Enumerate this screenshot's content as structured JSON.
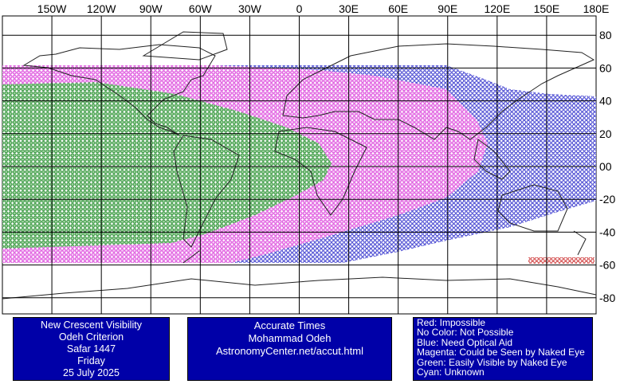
{
  "lon_labels": [
    "150W",
    "120W",
    "90W",
    "60W",
    "30W",
    "0",
    "30E",
    "60E",
    "90E",
    "120E",
    "150E",
    "180E"
  ],
  "lat_labels": [
    "80",
    "60",
    "40",
    "20",
    "00",
    "-20",
    "-40",
    "-60",
    "-80"
  ],
  "info_box": {
    "lines": [
      "New Crescent Visibility",
      "Odeh Criterion",
      "Safar 1447",
      "Friday",
      "25 July 2025"
    ]
  },
  "credit_box": {
    "lines": [
      "Accurate Times",
      "Mohammad Odeh",
      "AstronomyCenter.net/accut.html"
    ]
  },
  "legend": {
    "lines": [
      "Red: Impossible",
      "No Color: Not Possible",
      "Blue: Need Optical Aid",
      "Magenta: Could be Seen by Naked Eye",
      "Green: Easily Visible by Naked Eye",
      "Cyan: Unknown"
    ]
  }
}
